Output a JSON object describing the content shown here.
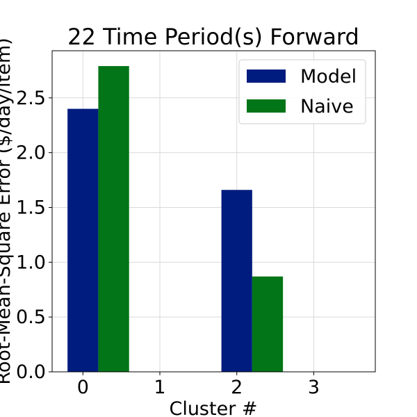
{
  "chart_data": {
    "type": "bar",
    "title": "22 Time Period(s) Forward",
    "xlabel": "Cluster #",
    "ylabel": "Root-Mean-Square Error ($/day/item)",
    "categories": [
      "0",
      "1",
      "2",
      "3"
    ],
    "series": [
      {
        "name": "Model",
        "color": "#001c7f",
        "values": [
          2.4,
          0,
          1.66,
          0
        ]
      },
      {
        "name": "Naive",
        "color": "#017517",
        "values": [
          2.79,
          0,
          0.87,
          0
        ]
      }
    ],
    "yticks": [
      "0.0",
      "0.5",
      "1.0",
      "1.5",
      "2.0",
      "2.5"
    ],
    "ylim": [
      0,
      2.93
    ],
    "grid": true,
    "legend_position": "top-right"
  }
}
